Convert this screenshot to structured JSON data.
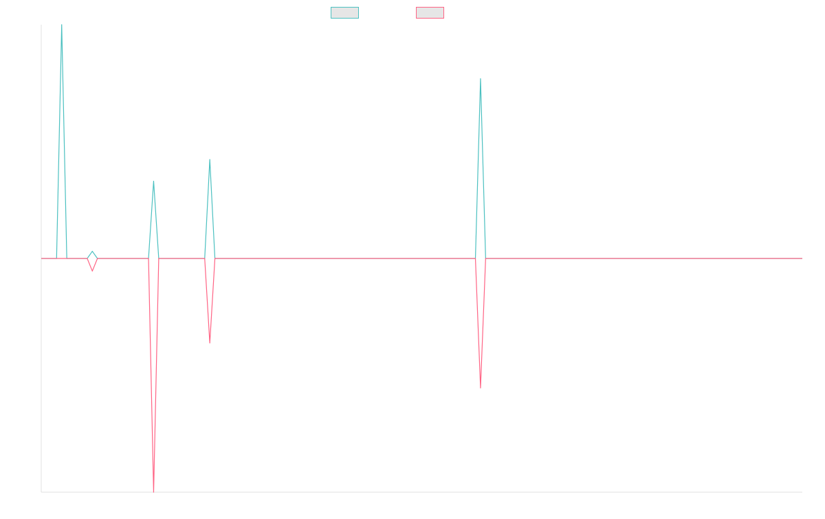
{
  "chart_data": {
    "type": "line",
    "title": "",
    "xlabel": "",
    "ylabel": "",
    "grid": false,
    "legend_position": "top-center",
    "x_count": 150,
    "ylim": [
      -1.3,
      1.3
    ],
    "series": [
      {
        "color": "#4bc0c0",
        "fill": "#e6e6e6",
        "points": [
          [
            3,
            0
          ],
          [
            4,
            1.3
          ],
          [
            5,
            0
          ],
          [
            9,
            0
          ],
          [
            10,
            0.04
          ],
          [
            11,
            0
          ],
          [
            21,
            0
          ],
          [
            22,
            0.43
          ],
          [
            23,
            0
          ],
          [
            32,
            0
          ],
          [
            33,
            0.55
          ],
          [
            34,
            0
          ],
          [
            85,
            0
          ],
          [
            86,
            1.0
          ],
          [
            87,
            0
          ]
        ]
      },
      {
        "color": "#ff6384",
        "fill": "#e6e6e6",
        "points": [
          [
            9,
            0
          ],
          [
            10,
            -0.07
          ],
          [
            11,
            0
          ],
          [
            21,
            0
          ],
          [
            22,
            -1.3
          ],
          [
            23,
            0
          ],
          [
            32,
            0
          ],
          [
            33,
            -0.47
          ],
          [
            34,
            0
          ],
          [
            85,
            0
          ],
          [
            86,
            -0.72
          ],
          [
            87,
            0
          ]
        ]
      }
    ]
  }
}
